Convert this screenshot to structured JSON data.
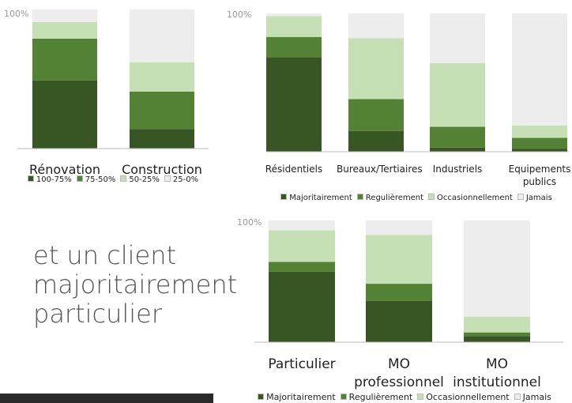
{
  "chart_data": [
    {
      "type": "stacked_bar",
      "categories": [
        "Rénovation",
        "Construction"
      ],
      "series": [
        {
          "name": "100-75%",
          "color": "#375623",
          "values": [
            49,
            14
          ]
        },
        {
          "name": "75-50%",
          "color": "#548235",
          "values": [
            30,
            27
          ]
        },
        {
          "name": "50-25%",
          "color": "#c5e0b4",
          "values": [
            12,
            21
          ]
        },
        {
          "name": "25-0%",
          "color": "#ededed",
          "values": [
            9,
            38
          ]
        }
      ],
      "ylim": [
        0,
        100
      ],
      "yticks": [
        {
          "value": 100,
          "label": "100%"
        }
      ]
    },
    {
      "type": "stacked_bar",
      "categories": [
        "Résidentiels",
        "Bureaux/Tertiaires",
        "Industriels",
        "Equipements publics"
      ],
      "series": [
        {
          "name": "Majoritairement",
          "color": "#375623",
          "values": [
            68,
            15,
            3,
            2
          ]
        },
        {
          "name": "Regulièrement",
          "color": "#548235",
          "values": [
            15,
            23,
            15,
            8
          ]
        },
        {
          "name": "Occasionnellement",
          "color": "#c5e0b4",
          "values": [
            15,
            44,
            46,
            9
          ]
        },
        {
          "name": "Jamais",
          "color": "#ededed",
          "values": [
            2,
            18,
            36,
            81
          ]
        }
      ],
      "ylim": [
        0,
        100
      ],
      "yticks": [
        {
          "value": 100,
          "label": "100%"
        }
      ]
    },
    {
      "type": "stacked_bar",
      "categories": [
        "Particulier",
        "MO professionnel",
        "MO institutionnel"
      ],
      "series": [
        {
          "name": "Majoritairement",
          "color": "#375623",
          "values": [
            58,
            34,
            5
          ]
        },
        {
          "name": "Regulièrement",
          "color": "#548235",
          "values": [
            8,
            14,
            3
          ]
        },
        {
          "name": "Occasionnellement",
          "color": "#c5e0b4",
          "values": [
            26,
            40,
            13
          ]
        },
        {
          "name": "Jamais",
          "color": "#ededed",
          "values": [
            8,
            12,
            79
          ]
        }
      ],
      "ylim": [
        0,
        100
      ],
      "yticks": [
        {
          "value": 100,
          "label": "100%"
        }
      ]
    }
  ],
  "slide_text": "et un client majoritairement particulier"
}
